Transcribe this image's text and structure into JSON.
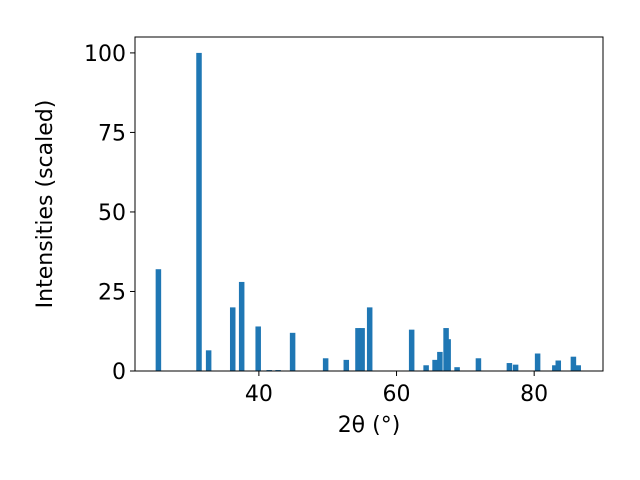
{
  "chart_data": {
    "type": "bar",
    "xlabel": "2θ (°)",
    "ylabel": "Intensities (scaled)",
    "x": [
      25.4,
      31.3,
      32.7,
      36.2,
      37.5,
      39.9,
      41.5,
      42.8,
      44.9,
      49.7,
      52.7,
      54.4,
      55.0,
      56.1,
      62.2,
      64.3,
      65.6,
      66.3,
      67.2,
      67.5,
      68.8,
      71.9,
      76.4,
      77.3,
      80.5,
      83.0,
      83.5,
      85.7,
      86.4
    ],
    "values": [
      32,
      100,
      6.5,
      20,
      28,
      14,
      0.3,
      0.3,
      12,
      4,
      3.5,
      13.5,
      13.5,
      20,
      13,
      1.8,
      3.5,
      6,
      13.5,
      10,
      1.2,
      4,
      2.5,
      2,
      5.5,
      1.8,
      3.3,
      4.5,
      1.8
    ],
    "color": "#1f77b4",
    "xlim": [
      22,
      90
    ],
    "ylim": [
      0,
      105
    ],
    "xticks": [
      40,
      60,
      80
    ],
    "yticks": [
      0,
      25,
      50,
      75,
      100
    ]
  }
}
